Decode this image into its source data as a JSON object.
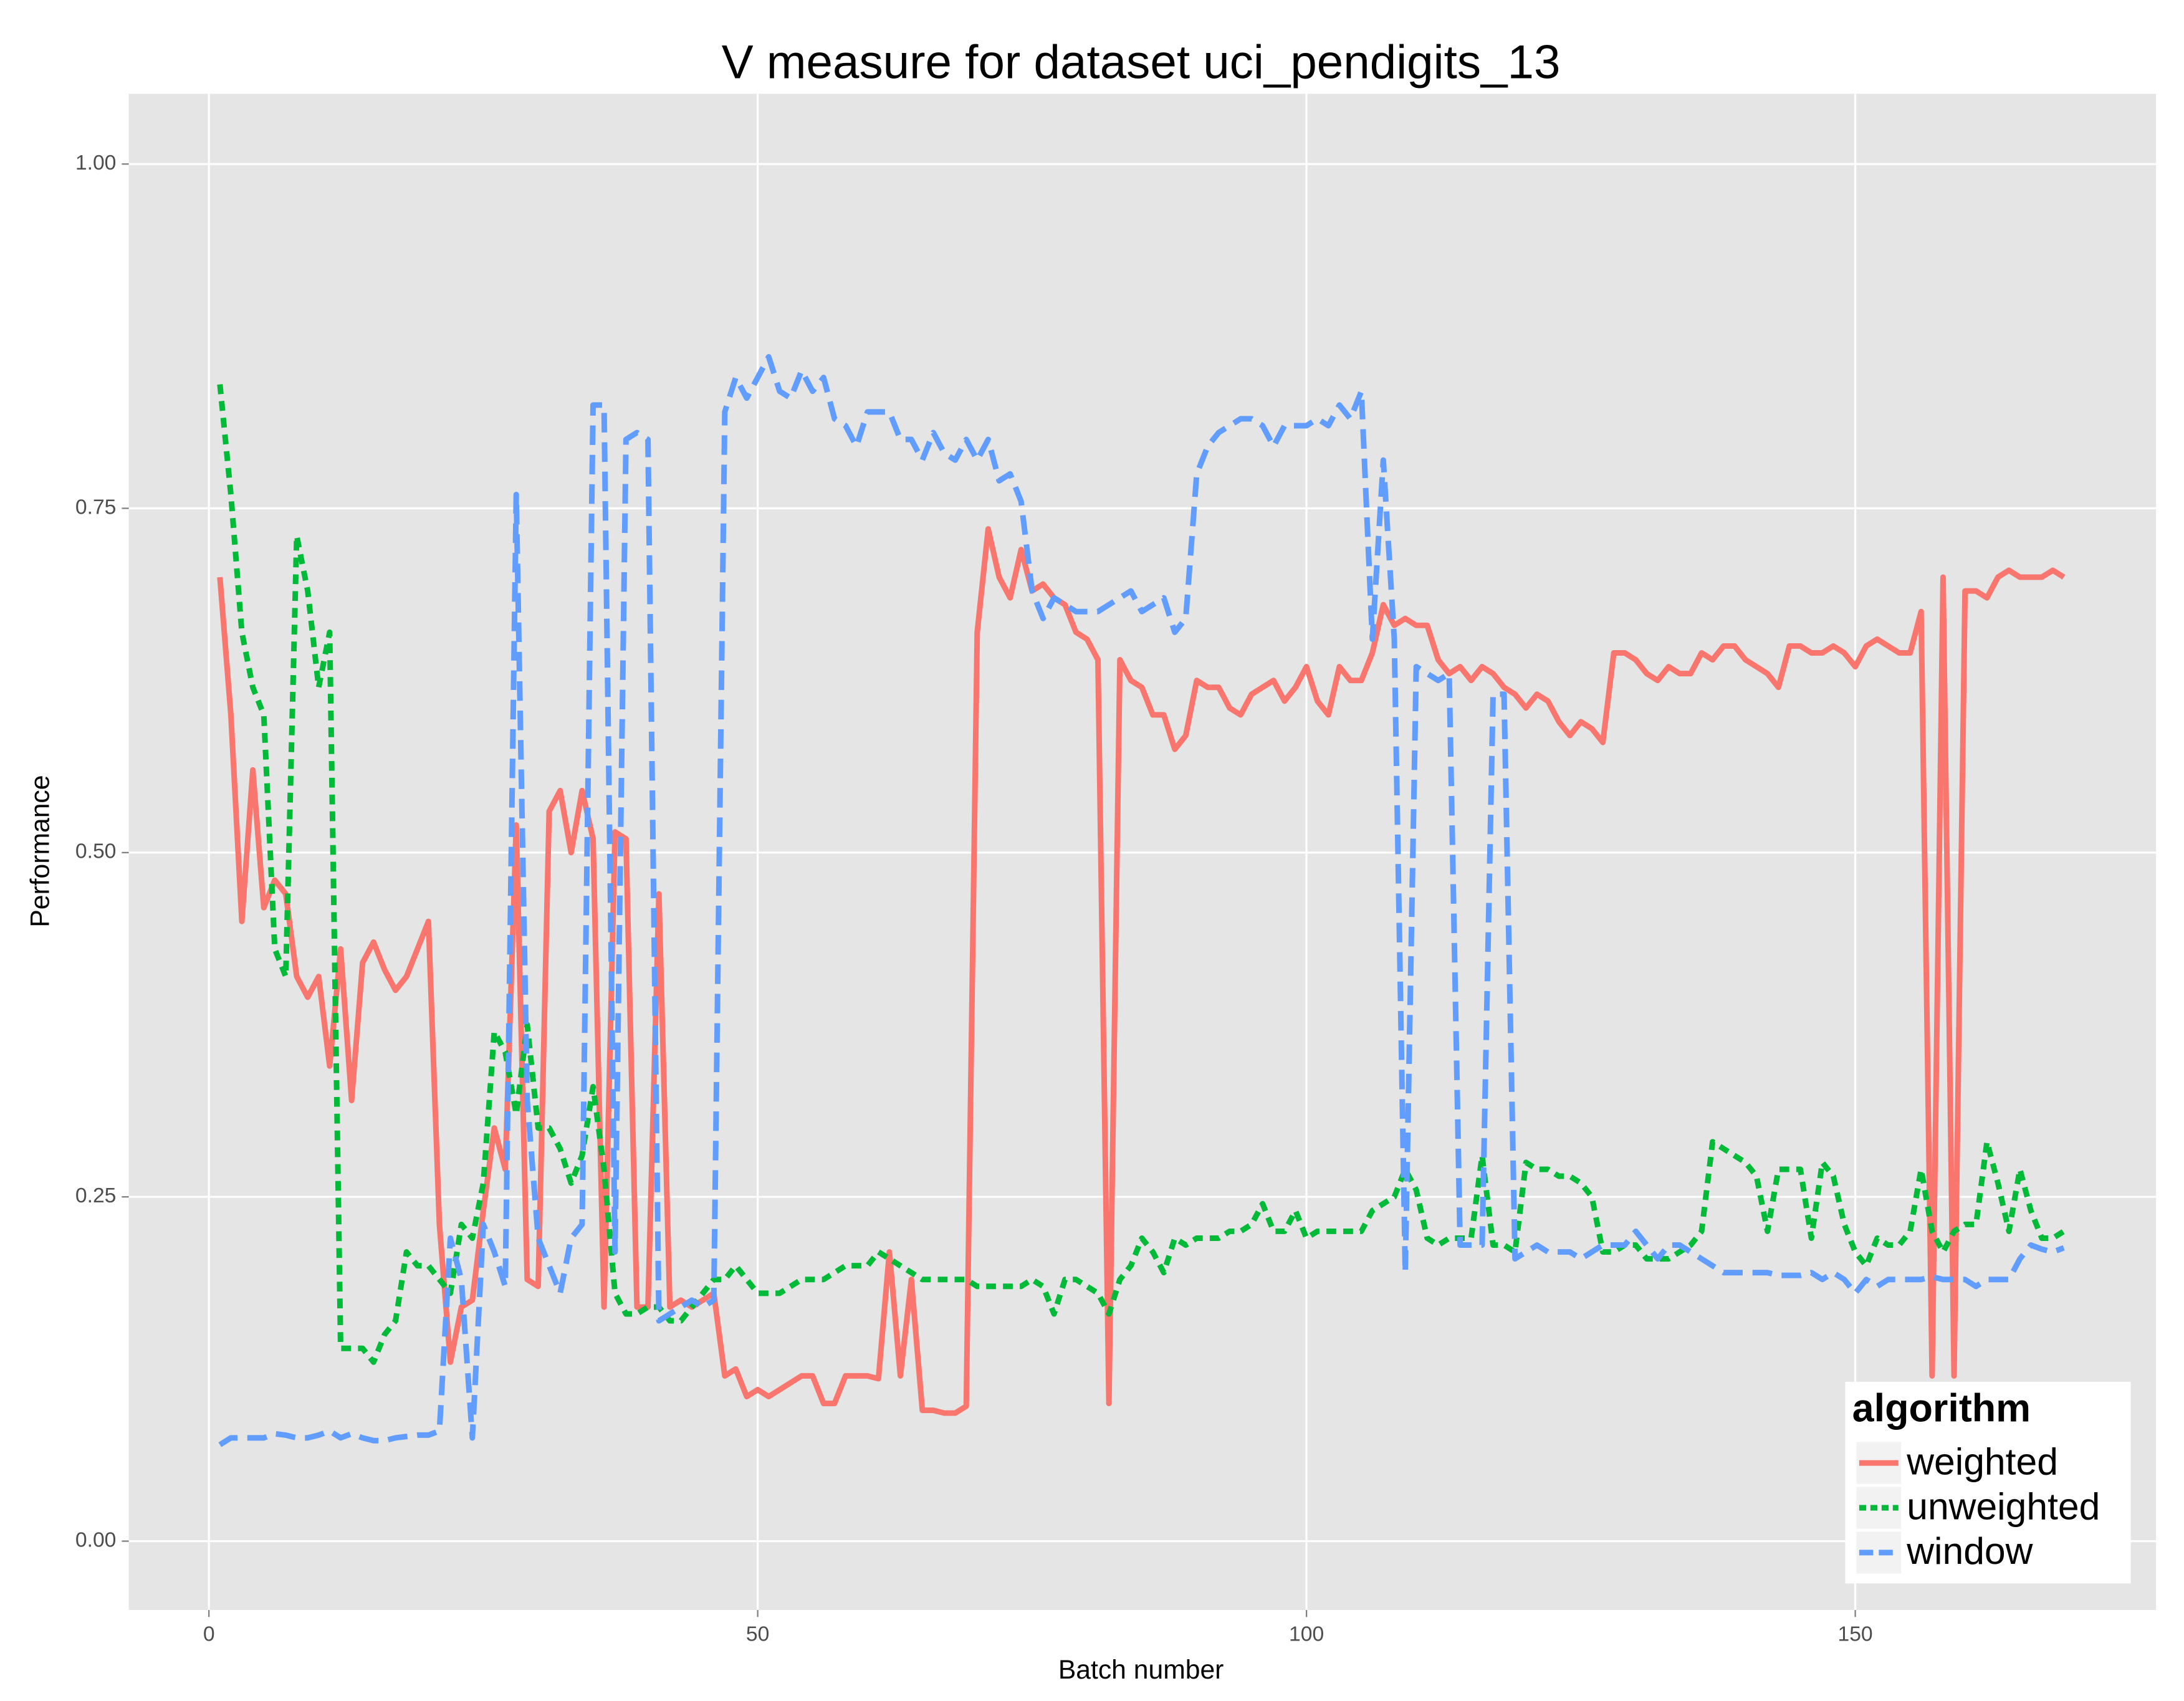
{
  "chart_data": {
    "type": "line",
    "title": "V measure for dataset uci_pendigits_13",
    "x_label": "Batch number",
    "y_label": "Performance",
    "legend_title": "algorithm",
    "legend": "bottom-right",
    "grid": true,
    "xlim": [
      -7.3,
      177.4
    ],
    "ylim": [
      -0.05,
      1.051
    ],
    "xticks": [
      0,
      50,
      100,
      150
    ],
    "yticks": [
      {
        "value": 0,
        "label": "0.00"
      },
      0.25,
      {
        "value": 0.5,
        "label": "0.50"
      },
      0.75,
      {
        "value": 1,
        "label": "1.00"
      }
    ],
    "x": [
      1,
      2,
      3,
      4,
      5,
      6,
      7,
      8,
      9,
      10,
      11,
      12,
      13,
      14,
      15,
      16,
      17,
      18,
      19,
      20,
      21,
      22,
      23,
      24,
      25,
      26,
      27,
      28,
      29,
      30,
      31,
      32,
      33,
      34,
      35,
      36,
      37,
      38,
      39,
      40,
      41,
      42,
      43,
      44,
      45,
      46,
      47,
      48,
      49,
      50,
      51,
      52,
      53,
      54,
      55,
      56,
      57,
      58,
      59,
      60,
      61,
      62,
      63,
      64,
      65,
      66,
      67,
      68,
      69,
      70,
      71,
      72,
      73,
      74,
      75,
      76,
      77,
      78,
      79,
      80,
      81,
      82,
      83,
      84,
      85,
      86,
      87,
      88,
      89,
      90,
      91,
      92,
      93,
      94,
      95,
      96,
      97,
      98,
      99,
      100,
      101,
      102,
      103,
      104,
      105,
      106,
      107,
      108,
      109,
      110,
      111,
      112,
      113,
      114,
      115,
      116,
      117,
      118,
      119,
      120,
      121,
      122,
      123,
      124,
      125,
      126,
      127,
      128,
      129,
      130,
      131,
      132,
      133,
      134,
      135,
      136,
      137,
      138,
      139,
      140,
      141,
      142,
      143,
      144,
      145,
      146,
      147,
      148,
      149,
      150,
      151,
      152,
      153,
      154,
      155,
      156,
      157,
      158,
      159,
      160,
      161,
      162,
      163,
      164,
      165,
      166,
      167,
      168,
      169
    ],
    "series": [
      {
        "name": "weighted",
        "color": "#f8766d",
        "dash": "solid",
        "values": [
          0.7,
          0.6,
          0.45,
          0.56,
          0.46,
          0.48,
          0.47,
          0.41,
          0.395,
          0.41,
          0.345,
          0.43,
          0.32,
          0.42,
          0.435,
          0.415,
          0.4,
          0.41,
          0.43,
          0.45,
          0.23,
          0.13,
          0.17,
          0.175,
          0.24,
          0.3,
          0.27,
          0.52,
          0.19,
          0.185,
          0.53,
          0.545,
          0.5,
          0.545,
          0.51,
          0.17,
          0.515,
          0.51,
          0.17,
          0.17,
          0.47,
          0.17,
          0.175,
          0.17,
          0.175,
          0.18,
          0.12,
          0.125,
          0.105,
          0.11,
          0.105,
          0.11,
          0.115,
          0.12,
          0.12,
          0.1,
          0.1,
          0.12,
          0.12,
          0.12,
          0.118,
          0.21,
          0.12,
          0.19,
          0.095,
          0.095,
          0.093,
          0.093,
          0.098,
          0.66,
          0.735,
          0.7,
          0.685,
          0.72,
          0.69,
          0.695,
          0.685,
          0.68,
          0.66,
          0.655,
          0.64,
          0.1,
          0.64,
          0.625,
          0.62,
          0.6,
          0.6,
          0.575,
          0.585,
          0.625,
          0.62,
          0.62,
          0.605,
          0.6,
          0.615,
          0.62,
          0.625,
          0.61,
          0.62,
          0.635,
          0.61,
          0.6,
          0.635,
          0.625,
          0.625,
          0.645,
          0.68,
          0.665,
          0.67,
          0.665,
          0.665,
          0.64,
          0.63,
          0.635,
          0.625,
          0.635,
          0.63,
          0.62,
          0.615,
          0.605,
          0.615,
          0.61,
          0.595,
          0.585,
          0.595,
          0.59,
          0.58,
          0.645,
          0.645,
          0.64,
          0.63,
          0.625,
          0.635,
          0.63,
          0.63,
          0.645,
          0.64,
          0.65,
          0.65,
          0.64,
          0.635,
          0.63,
          0.62,
          0.65,
          0.65,
          0.645,
          0.645,
          0.65,
          0.645,
          0.635,
          0.65,
          0.655,
          0.65,
          0.645,
          0.645,
          0.675,
          0.12,
          0.7,
          0.12,
          0.69,
          0.69,
          0.685,
          0.7,
          0.705,
          0.7,
          0.7,
          0.7,
          0.705,
          0.7
        ]
      },
      {
        "name": "unweighted",
        "color": "#00ba38",
        "dash": "dotted",
        "values": [
          0.84,
          0.76,
          0.66,
          0.62,
          0.6,
          0.43,
          0.41,
          0.73,
          0.69,
          0.62,
          0.66,
          0.14,
          0.14,
          0.14,
          0.13,
          0.15,
          0.16,
          0.21,
          0.2,
          0.2,
          0.19,
          0.18,
          0.23,
          0.22,
          0.26,
          0.37,
          0.355,
          0.31,
          0.375,
          0.3,
          0.3,
          0.285,
          0.26,
          0.28,
          0.33,
          0.27,
          0.18,
          0.165,
          0.165,
          0.17,
          0.17,
          0.16,
          0.16,
          0.17,
          0.18,
          0.19,
          0.19,
          0.2,
          0.19,
          0.18,
          0.18,
          0.18,
          0.185,
          0.19,
          0.19,
          0.19,
          0.195,
          0.2,
          0.2,
          0.2,
          0.21,
          0.205,
          0.2,
          0.195,
          0.19,
          0.19,
          0.19,
          0.19,
          0.19,
          0.185,
          0.185,
          0.185,
          0.185,
          0.185,
          0.19,
          0.185,
          0.165,
          0.19,
          0.19,
          0.185,
          0.18,
          0.165,
          0.19,
          0.2,
          0.22,
          0.21,
          0.195,
          0.22,
          0.215,
          0.22,
          0.22,
          0.22,
          0.225,
          0.225,
          0.23,
          0.245,
          0.225,
          0.225,
          0.24,
          0.22,
          0.225,
          0.225,
          0.225,
          0.225,
          0.225,
          0.24,
          0.245,
          0.25,
          0.27,
          0.255,
          0.22,
          0.215,
          0.22,
          0.22,
          0.22,
          0.28,
          0.215,
          0.215,
          0.21,
          0.275,
          0.27,
          0.27,
          0.265,
          0.265,
          0.26,
          0.25,
          0.21,
          0.21,
          0.215,
          0.215,
          0.205,
          0.205,
          0.205,
          0.21,
          0.215,
          0.225,
          0.29,
          0.285,
          0.28,
          0.275,
          0.265,
          0.225,
          0.27,
          0.27,
          0.27,
          0.22,
          0.275,
          0.265,
          0.23,
          0.21,
          0.2,
          0.22,
          0.215,
          0.215,
          0.225,
          0.27,
          0.225,
          0.21,
          0.225,
          0.23,
          0.23,
          0.29,
          0.26,
          0.225,
          0.27,
          0.24,
          0.22,
          0.22,
          0.225
        ]
      },
      {
        "name": "window",
        "color": "#619cff",
        "dash": "dashed",
        "values": [
          0.07,
          0.075,
          0.075,
          0.075,
          0.075,
          0.078,
          0.077,
          0.075,
          0.075,
          0.077,
          0.08,
          0.075,
          0.078,
          0.075,
          0.073,
          0.073,
          0.075,
          0.076,
          0.077,
          0.077,
          0.08,
          0.22,
          0.19,
          0.075,
          0.23,
          0.21,
          0.185,
          0.76,
          0.32,
          0.22,
          0.2,
          0.18,
          0.22,
          0.23,
          0.825,
          0.825,
          0.21,
          0.8,
          0.805,
          0.8,
          0.16,
          0.165,
          0.17,
          0.175,
          0.17,
          0.175,
          0.82,
          0.845,
          0.83,
          0.845,
          0.86,
          0.835,
          0.83,
          0.85,
          0.835,
          0.845,
          0.815,
          0.81,
          0.795,
          0.82,
          0.82,
          0.82,
          0.8,
          0.8,
          0.785,
          0.805,
          0.79,
          0.785,
          0.8,
          0.785,
          0.8,
          0.77,
          0.775,
          0.755,
          0.69,
          0.67,
          0.685,
          0.68,
          0.675,
          0.675,
          0.675,
          0.68,
          0.685,
          0.69,
          0.675,
          0.68,
          0.685,
          0.66,
          0.67,
          0.775,
          0.795,
          0.805,
          0.81,
          0.815,
          0.815,
          0.81,
          0.795,
          0.81,
          0.81,
          0.81,
          0.815,
          0.81,
          0.825,
          0.815,
          0.835,
          0.655,
          0.785,
          0.655,
          0.195,
          0.635,
          0.63,
          0.625,
          0.63,
          0.215,
          0.215,
          0.215,
          0.615,
          0.615,
          0.205,
          0.21,
          0.215,
          0.21,
          0.21,
          0.21,
          0.205,
          0.21,
          0.215,
          0.215,
          0.215,
          0.225,
          0.215,
          0.205,
          0.215,
          0.215,
          0.21,
          0.205,
          0.2,
          0.195,
          0.195,
          0.195,
          0.195,
          0.195,
          0.193,
          0.193,
          0.193,
          0.195,
          0.19,
          0.195,
          0.19,
          0.18,
          0.19,
          0.185,
          0.19,
          0.19,
          0.19,
          0.19,
          0.192,
          0.19,
          0.19,
          0.19,
          0.185,
          0.19,
          0.19,
          0.19,
          0.205,
          0.215,
          0.212,
          0.21,
          0.213
        ]
      }
    ]
  }
}
